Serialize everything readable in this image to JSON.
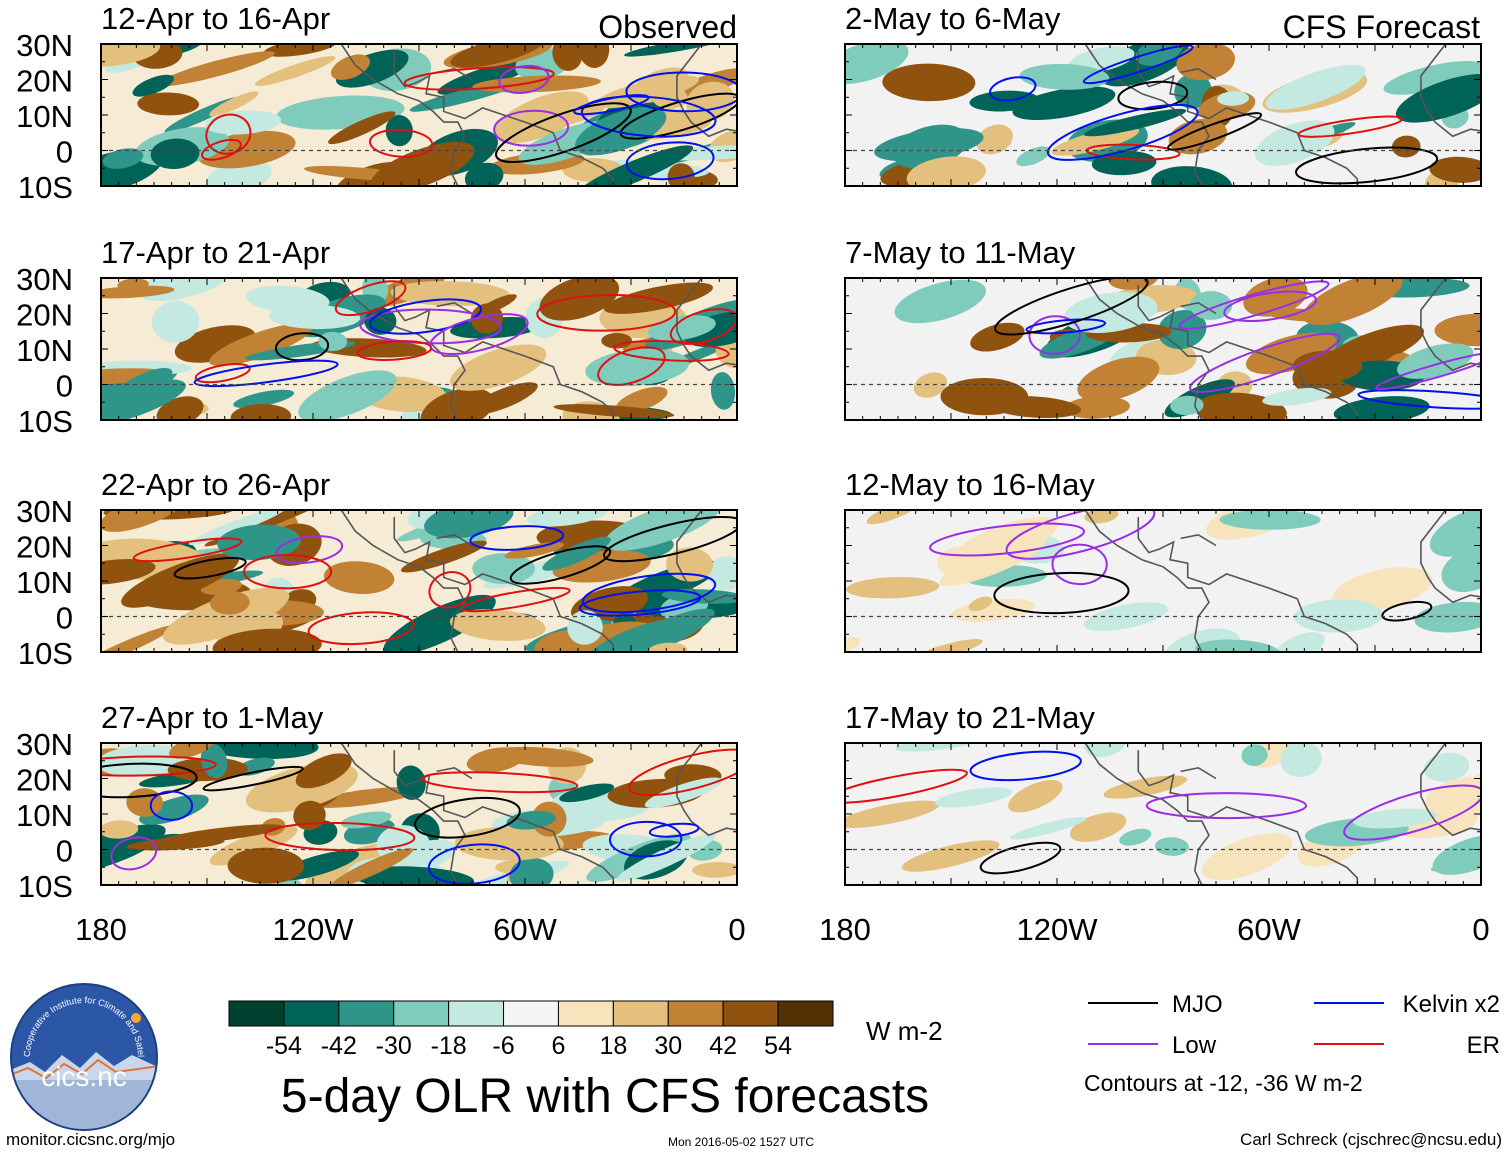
{
  "figure_title": "5-day OLR with CFS forecasts",
  "headers": {
    "observed": "Observed",
    "forecast": "CFS Forecast"
  },
  "panels": [
    {
      "id": "p1",
      "period": "12-Apr to 16-Apr",
      "type": "observed"
    },
    {
      "id": "p2",
      "period": "17-Apr to 21-Apr",
      "type": "observed"
    },
    {
      "id": "p3",
      "period": "22-Apr to 26-Apr",
      "type": "observed"
    },
    {
      "id": "p4",
      "period": "27-Apr to 1-May",
      "type": "observed"
    },
    {
      "id": "p5",
      "period": "2-May to 6-May",
      "type": "forecast"
    },
    {
      "id": "p6",
      "period": "7-May to 11-May",
      "type": "forecast"
    },
    {
      "id": "p7",
      "period": "12-May to 16-May",
      "type": "forecast"
    },
    {
      "id": "p8",
      "period": "17-May to 21-May",
      "type": "forecast"
    }
  ],
  "lat_labels": [
    "30N",
    "20N",
    "10N",
    "0",
    "10S"
  ],
  "lon_labels": [
    "180",
    "120W",
    "60W",
    "0"
  ],
  "colorbar": {
    "units": "W m-2",
    "ticks": [
      "-54",
      "-42",
      "-30",
      "-18",
      "-6",
      "6",
      "18",
      "30",
      "42",
      "54"
    ],
    "colors": [
      "#00402f",
      "#006358",
      "#2f9588",
      "#7fccbc",
      "#c4e9e0",
      "#f5f5f5",
      "#f7e4bd",
      "#e3c07d",
      "#c18236",
      "#8f530f",
      "#543005"
    ]
  },
  "legend": {
    "items": [
      {
        "label": "MJO",
        "color": "#000000"
      },
      {
        "label": "Kelvin x2",
        "color": "#0011ee"
      },
      {
        "label": "Low",
        "color": "#9a2ee6"
      },
      {
        "label": "ER",
        "color": "#e01010"
      }
    ],
    "note": "Contours at -12, -36 W m-2"
  },
  "logo": {
    "name": "cics.nc",
    "ring_text": "Cooperative Institute for Climate and Satellites"
  },
  "footer": {
    "left": "monitor.cicsnc.org/mjo",
    "center": "Mon 2016-05-02 1527 UTC",
    "right": "Carl Schreck (cjschrec@ncsu.edu)"
  }
}
